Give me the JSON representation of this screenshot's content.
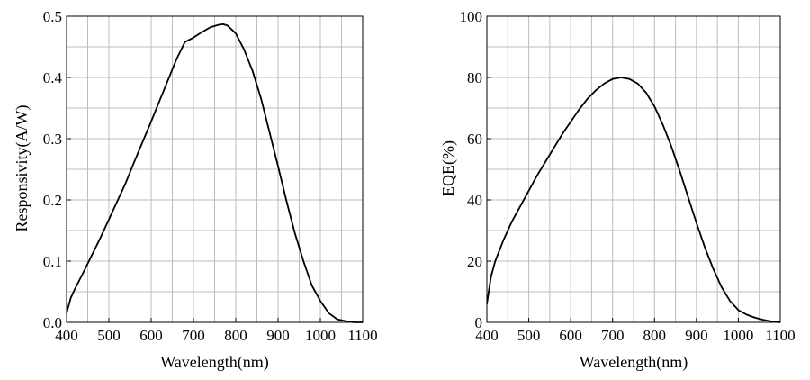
{
  "chart_data": [
    {
      "type": "line",
      "title": "",
      "xlabel": "Wavelength(nm)",
      "ylabel": "Responsivity(A/W)",
      "xlim": [
        400,
        1100
      ],
      "ylim": [
        0,
        0.5
      ],
      "xticks": [
        400,
        500,
        600,
        700,
        800,
        900,
        1000,
        1100
      ],
      "yticks": [
        0.0,
        0.1,
        0.2,
        0.3,
        0.4,
        0.5
      ],
      "ytick_labels": [
        "0.0",
        "0.1",
        "0.2",
        "0.3",
        "0.4",
        "0.5"
      ],
      "grid": true,
      "series": [
        {
          "x": [
            400,
            410,
            420,
            440,
            460,
            480,
            500,
            520,
            540,
            560,
            580,
            600,
            620,
            640,
            660,
            680,
            700,
            720,
            740,
            760,
            770,
            780,
            800,
            820,
            840,
            860,
            880,
            900,
            920,
            940,
            960,
            980,
            1000,
            1020,
            1040,
            1060,
            1080,
            1100
          ],
          "y": [
            0.015,
            0.04,
            0.055,
            0.082,
            0.11,
            0.138,
            0.168,
            0.198,
            0.228,
            0.262,
            0.295,
            0.328,
            0.362,
            0.396,
            0.43,
            0.458,
            0.465,
            0.474,
            0.482,
            0.486,
            0.487,
            0.485,
            0.472,
            0.445,
            0.41,
            0.365,
            0.31,
            0.255,
            0.198,
            0.145,
            0.1,
            0.06,
            0.035,
            0.015,
            0.005,
            0.002,
            0.0,
            0.0
          ]
        }
      ]
    },
    {
      "type": "line",
      "title": "",
      "xlabel": "Wavelength(nm)",
      "ylabel": "EQE(%)",
      "xlim": [
        400,
        1100
      ],
      "ylim": [
        0,
        100
      ],
      "xticks": [
        400,
        500,
        600,
        700,
        800,
        900,
        1000,
        1100
      ],
      "yticks": [
        0,
        20,
        40,
        60,
        80,
        100
      ],
      "ytick_labels": [
        "0",
        "20",
        "40",
        "60",
        "80",
        "100"
      ],
      "grid": true,
      "series": [
        {
          "x": [
            400,
            410,
            420,
            440,
            460,
            480,
            500,
            520,
            540,
            560,
            580,
            600,
            620,
            640,
            660,
            680,
            700,
            720,
            740,
            760,
            780,
            800,
            820,
            840,
            860,
            880,
            900,
            920,
            940,
            960,
            980,
            1000,
            1020,
            1040,
            1060,
            1080,
            1100
          ],
          "y": [
            6,
            15,
            20,
            27,
            33,
            38,
            43,
            48,
            52.5,
            57,
            61.5,
            65.5,
            69.5,
            73,
            75.8,
            78,
            79.5,
            80,
            79.5,
            78,
            75,
            70.5,
            64.5,
            57.5,
            49.5,
            41,
            32.5,
            24.5,
            17.5,
            11.5,
            7,
            4,
            2.5,
            1.5,
            0.8,
            0.3,
            0
          ]
        }
      ]
    }
  ]
}
